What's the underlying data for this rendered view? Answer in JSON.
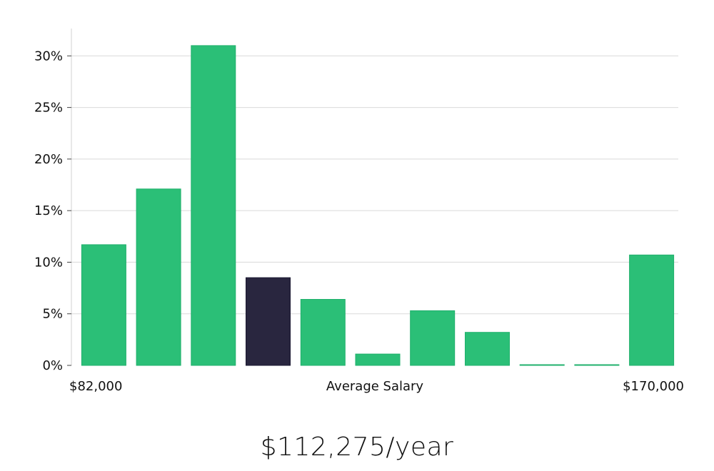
{
  "summary": {
    "salary_text": "$112,275/year"
  },
  "colors": {
    "bar": "#2bbf77",
    "highlight": "#29263f",
    "grid": "#d9d9d9",
    "text": "#111111"
  },
  "chart_data": {
    "type": "bar",
    "title": "",
    "xlabel": "Average Salary",
    "ylabel": "",
    "x_range_labels": [
      "$82,000",
      "$170,000"
    ],
    "ylim": [
      0,
      33
    ],
    "yticks": [
      0,
      5,
      10,
      15,
      20,
      25,
      30
    ],
    "ytick_labels": [
      "0%",
      "5%",
      "10%",
      "15%",
      "20%",
      "25%",
      "30%"
    ],
    "grid": true,
    "highlight_index": 3,
    "values": [
      11.7,
      17.1,
      31.0,
      8.5,
      6.4,
      1.1,
      5.3,
      3.2,
      0.05,
      0.05,
      10.7
    ]
  }
}
